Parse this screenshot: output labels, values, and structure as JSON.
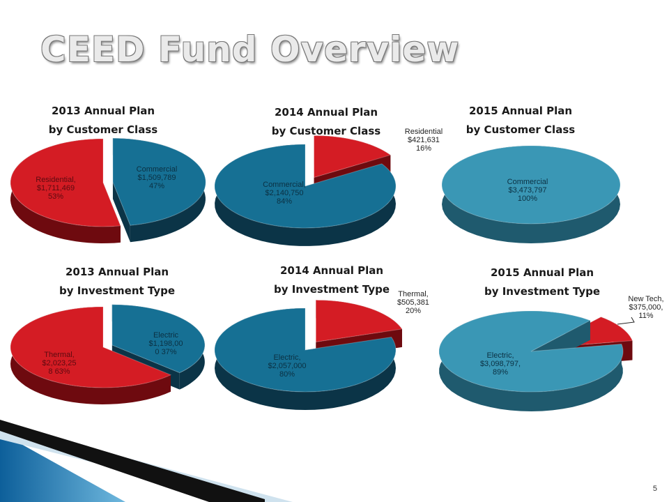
{
  "slide": {
    "title": "CEED Fund Overview",
    "page_number": "5"
  },
  "colors": {
    "red": "#d41c24",
    "red_side": "#6e0a0f",
    "blue_dark": "#167094",
    "blue_dark_side": "#0b3447",
    "blue_light": "#3a97b5",
    "blue_light_side": "#1f5a6e",
    "label_dark": "#5c0a10",
    "label_blue": "#0b3042"
  },
  "chart_data": [
    {
      "type": "pie",
      "title_line1": "2013 Annual Plan",
      "title_line2": "by Customer Class",
      "slices": [
        {
          "label_lines": [
            "Commercial",
            "$1,509,789",
            "47%"
          ],
          "value": 1509789,
          "percent": 47,
          "color": "blue_dark"
        },
        {
          "label_lines": [
            "Residential,",
            "$1,711,469",
            "53%"
          ],
          "value": 1711469,
          "percent": 53,
          "color": "red"
        }
      ]
    },
    {
      "type": "pie",
      "title_line1": "2014 Annual Plan",
      "title_line2": "by Customer Class",
      "slices": [
        {
          "label_lines": [
            "Residential",
            "$421,631",
            "16%"
          ],
          "value": 421631,
          "percent": 16,
          "color": "red"
        },
        {
          "label_lines": [
            "Commercial,",
            "$2,140,750",
            "84%"
          ],
          "value": 2140750,
          "percent": 84,
          "color": "blue_dark"
        }
      ]
    },
    {
      "type": "pie",
      "title_line1": "2015 Annual Plan",
      "title_line2": "by Customer Class",
      "slices": [
        {
          "label_lines": [
            "Commercial",
            "$3,473,797",
            "100%"
          ],
          "value": 3473797,
          "percent": 100,
          "color": "blue_light"
        }
      ]
    },
    {
      "type": "pie",
      "title_line1": "2013 Annual Plan",
      "title_line2": "by Investment Type",
      "slices": [
        {
          "label_lines": [
            "Electric",
            "$1,198,00",
            "0  37%"
          ],
          "value": 1198000,
          "percent": 37,
          "color": "blue_dark"
        },
        {
          "label_lines": [
            "Thermal,",
            "$2,023,25",
            "8  63%"
          ],
          "value": 2023258,
          "percent": 63,
          "color": "red"
        }
      ]
    },
    {
      "type": "pie",
      "title_line1": "2014 Annual Plan",
      "title_line2": "by Investment Type",
      "slices": [
        {
          "label_lines": [
            "Thermal,",
            "$505,381",
            "20%"
          ],
          "value": 505381,
          "percent": 20,
          "color": "red"
        },
        {
          "label_lines": [
            "Electric,",
            "$2,057,000",
            "80%"
          ],
          "value": 2057000,
          "percent": 80,
          "color": "blue_dark"
        }
      ]
    },
    {
      "type": "pie",
      "title_line1": "2015 Annual Plan",
      "title_line2": "by Investment Type",
      "slices": [
        {
          "label_lines": [
            "New Tech,",
            "$375,000,",
            "11%"
          ],
          "value": 375000,
          "percent": 11,
          "color": "red"
        },
        {
          "label_lines": [
            "Electric,",
            "$3,098,797,",
            "89%"
          ],
          "value": 3098797,
          "percent": 89,
          "color": "blue_light"
        }
      ]
    }
  ]
}
